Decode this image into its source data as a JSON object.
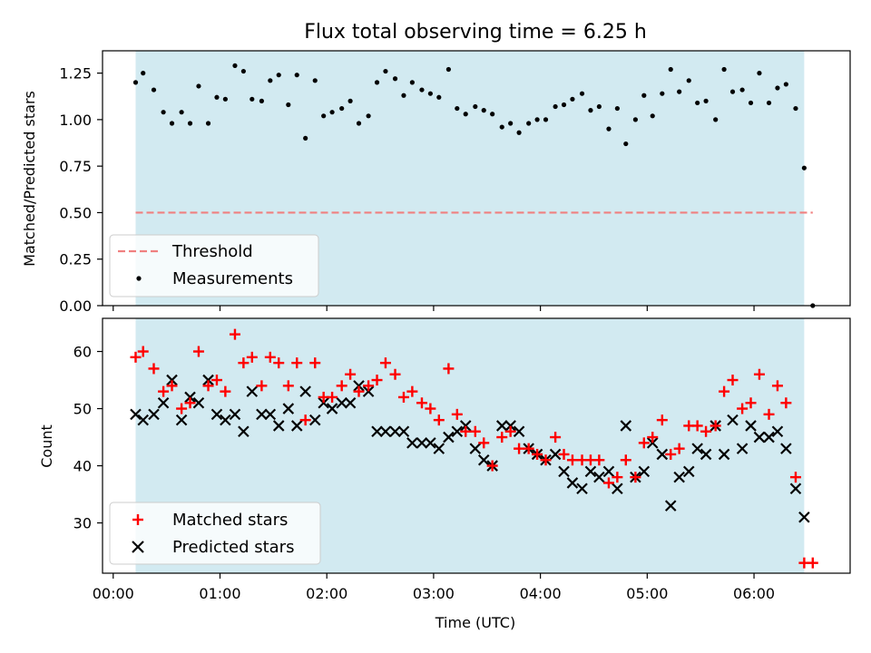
{
  "figure": {
    "title": "Flux total observing time = 6.25 h",
    "xlabel": "Time (UTC)",
    "colors": {
      "shade": "#add8e6",
      "threshold": "#f08080",
      "measurements": "#000000",
      "matched": "#ff0000",
      "predicted": "#000000"
    }
  },
  "chart_data": [
    {
      "type": "scatter",
      "title": "Flux total observing time = 6.25 h",
      "ylabel": "Matched/Predicted stars",
      "xlabel": "",
      "x_unit": "hours (UTC)",
      "xlim": [
        -0.1,
        6.9
      ],
      "ylim": [
        0.0,
        1.37
      ],
      "yticks": [
        0.0,
        0.25,
        0.5,
        0.75,
        1.0,
        1.25
      ],
      "ytick_labels": [
        "0.00",
        "0.25",
        "0.50",
        "0.75",
        "1.00",
        "1.25"
      ],
      "xticks": [
        0,
        1,
        2,
        3,
        4,
        5,
        6
      ],
      "shaded_span": [
        0.21,
        6.47
      ],
      "threshold": {
        "name": "Threshold",
        "y": 0.5,
        "x_range": [
          0.21,
          6.55
        ]
      },
      "legend": [
        "Threshold",
        "Measurements"
      ],
      "legend_position": "lower-left",
      "series": [
        {
          "name": "Measurements",
          "marker": "dot",
          "x": [
            0.21,
            0.28,
            0.38,
            0.47,
            0.55,
            0.64,
            0.72,
            0.8,
            0.89,
            0.97,
            1.05,
            1.14,
            1.22,
            1.3,
            1.39,
            1.47,
            1.55,
            1.64,
            1.72,
            1.8,
            1.89,
            1.97,
            2.05,
            2.14,
            2.22,
            2.3,
            2.39,
            2.47,
            2.55,
            2.64,
            2.72,
            2.8,
            2.89,
            2.97,
            3.05,
            3.14,
            3.22,
            3.3,
            3.39,
            3.47,
            3.55,
            3.64,
            3.72,
            3.8,
            3.89,
            3.97,
            4.05,
            4.14,
            4.22,
            4.3,
            4.39,
            4.47,
            4.55,
            4.64,
            4.72,
            4.8,
            4.89,
            4.97,
            5.05,
            5.14,
            5.22,
            5.3,
            5.39,
            5.47,
            5.55,
            5.64,
            5.72,
            5.8,
            5.89,
            5.97,
            6.05,
            6.14,
            6.22,
            6.3,
            6.39,
            6.47,
            6.55
          ],
          "y": [
            1.2,
            1.25,
            1.16,
            1.04,
            0.98,
            1.04,
            0.98,
            1.18,
            0.98,
            1.12,
            1.11,
            1.29,
            1.26,
            1.11,
            1.1,
            1.21,
            1.24,
            1.08,
            1.24,
            0.9,
            1.21,
            1.02,
            1.04,
            1.06,
            1.1,
            0.98,
            1.02,
            1.2,
            1.26,
            1.22,
            1.13,
            1.2,
            1.16,
            1.14,
            1.12,
            1.27,
            1.06,
            1.03,
            1.07,
            1.05,
            1.03,
            0.96,
            0.98,
            0.93,
            0.98,
            1.0,
            1.0,
            1.07,
            1.08,
            1.11,
            1.14,
            1.05,
            1.07,
            0.95,
            1.06,
            0.87,
            1.0,
            1.13,
            1.02,
            1.14,
            1.27,
            1.15,
            1.21,
            1.09,
            1.1,
            1.0,
            1.27,
            1.15,
            1.16,
            1.09,
            1.25,
            1.09,
            1.17,
            1.19,
            1.06,
            0.74,
            0.0
          ]
        }
      ]
    },
    {
      "type": "scatter",
      "title": "",
      "ylabel": "Count",
      "xlabel": "Time (UTC)",
      "x_unit": "hours (UTC)",
      "xlim": [
        -0.1,
        6.9
      ],
      "ylim": [
        21.2,
        65.8
      ],
      "yticks": [
        30,
        40,
        50,
        60
      ],
      "ytick_labels": [
        "30",
        "40",
        "50",
        "60"
      ],
      "xticks": [
        0,
        1,
        2,
        3,
        4,
        5,
        6
      ],
      "xtick_labels": [
        "00:00",
        "01:00",
        "02:00",
        "03:00",
        "04:00",
        "05:00",
        "06:00"
      ],
      "shaded_span": [
        0.21,
        6.47
      ],
      "legend": [
        "Matched stars",
        "Predicted stars"
      ],
      "legend_position": "lower-left",
      "series": [
        {
          "name": "Matched stars",
          "marker": "plus",
          "x": [
            0.21,
            0.28,
            0.38,
            0.47,
            0.55,
            0.64,
            0.72,
            0.8,
            0.89,
            0.97,
            1.05,
            1.14,
            1.22,
            1.3,
            1.39,
            1.47,
            1.55,
            1.64,
            1.72,
            1.8,
            1.89,
            1.97,
            2.05,
            2.14,
            2.22,
            2.3,
            2.39,
            2.47,
            2.55,
            2.64,
            2.72,
            2.8,
            2.89,
            2.97,
            3.05,
            3.14,
            3.22,
            3.3,
            3.39,
            3.47,
            3.55,
            3.64,
            3.72,
            3.8,
            3.89,
            3.97,
            4.05,
            4.14,
            4.22,
            4.3,
            4.39,
            4.47,
            4.55,
            4.64,
            4.72,
            4.8,
            4.89,
            4.97,
            5.05,
            5.14,
            5.22,
            5.3,
            5.39,
            5.47,
            5.55,
            5.64,
            5.72,
            5.8,
            5.89,
            5.97,
            6.05,
            6.14,
            6.22,
            6.3,
            6.39,
            6.47,
            6.55
          ],
          "y": [
            59,
            60,
            57,
            53,
            54,
            50,
            51,
            60,
            54,
            55,
            53,
            63,
            58,
            59,
            54,
            59,
            58,
            54,
            58,
            48,
            58,
            52,
            52,
            54,
            56,
            53,
            54,
            55,
            58,
            56,
            52,
            53,
            51,
            50,
            48,
            57,
            49,
            46,
            46,
            44,
            40,
            45,
            46,
            43,
            43,
            42,
            41,
            45,
            42,
            41,
            41,
            41,
            41,
            37,
            38,
            41,
            38,
            44,
            45,
            48,
            42,
            43,
            47,
            47,
            46,
            47,
            53,
            55,
            50,
            51,
            56,
            49,
            54,
            51,
            38,
            23,
            23
          ]
        },
        {
          "name": "Predicted stars",
          "marker": "x",
          "x": [
            0.21,
            0.28,
            0.38,
            0.47,
            0.55,
            0.64,
            0.72,
            0.8,
            0.89,
            0.97,
            1.05,
            1.14,
            1.22,
            1.3,
            1.39,
            1.47,
            1.55,
            1.64,
            1.72,
            1.8,
            1.89,
            1.97,
            2.05,
            2.14,
            2.22,
            2.3,
            2.39,
            2.47,
            2.55,
            2.64,
            2.72,
            2.8,
            2.89,
            2.97,
            3.05,
            3.14,
            3.22,
            3.3,
            3.39,
            3.47,
            3.55,
            3.64,
            3.72,
            3.8,
            3.89,
            3.97,
            4.05,
            4.14,
            4.22,
            4.3,
            4.39,
            4.47,
            4.55,
            4.64,
            4.72,
            4.8,
            4.89,
            4.97,
            5.05,
            5.14,
            5.22,
            5.3,
            5.39,
            5.47,
            5.55,
            5.64,
            5.72,
            5.8,
            5.89,
            5.97,
            6.05,
            6.14,
            6.22,
            6.3,
            6.39,
            6.47
          ],
          "y": [
            49,
            48,
            49,
            51,
            55,
            48,
            52,
            51,
            55,
            49,
            48,
            49,
            46,
            53,
            49,
            49,
            47,
            50,
            47,
            53,
            48,
            51,
            50,
            51,
            51,
            54,
            53,
            46,
            46,
            46,
            46,
            44,
            44,
            44,
            43,
            45,
            46,
            47,
            43,
            41,
            40,
            47,
            47,
            46,
            43,
            42,
            41,
            42,
            39,
            37,
            36,
            39,
            38,
            39,
            36,
            47,
            38,
            39,
            44,
            42,
            33,
            38,
            39,
            43,
            42,
            47,
            42,
            48,
            43,
            47,
            45,
            45,
            46,
            43,
            36,
            31
          ]
        }
      ]
    }
  ]
}
